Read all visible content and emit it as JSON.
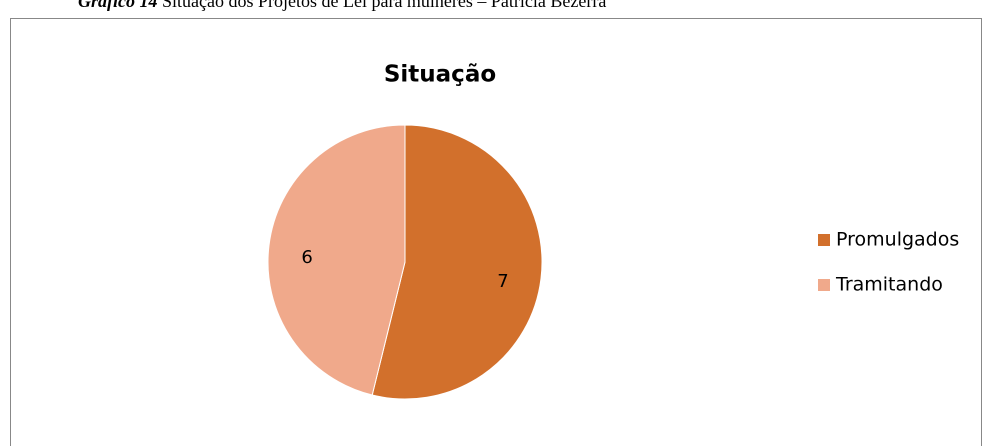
{
  "caption": {
    "label": "Gráfico 14",
    "text": "Situação dos Projetos de Lei para mulheres – Patrícia Bezerra"
  },
  "chart_data": {
    "type": "pie",
    "title": "Situação",
    "categories": [
      "Promulgados",
      "Tramitando"
    ],
    "values": [
      7,
      6
    ],
    "colors": [
      "#d2702c",
      "#f0a98b"
    ],
    "legend": "right"
  }
}
